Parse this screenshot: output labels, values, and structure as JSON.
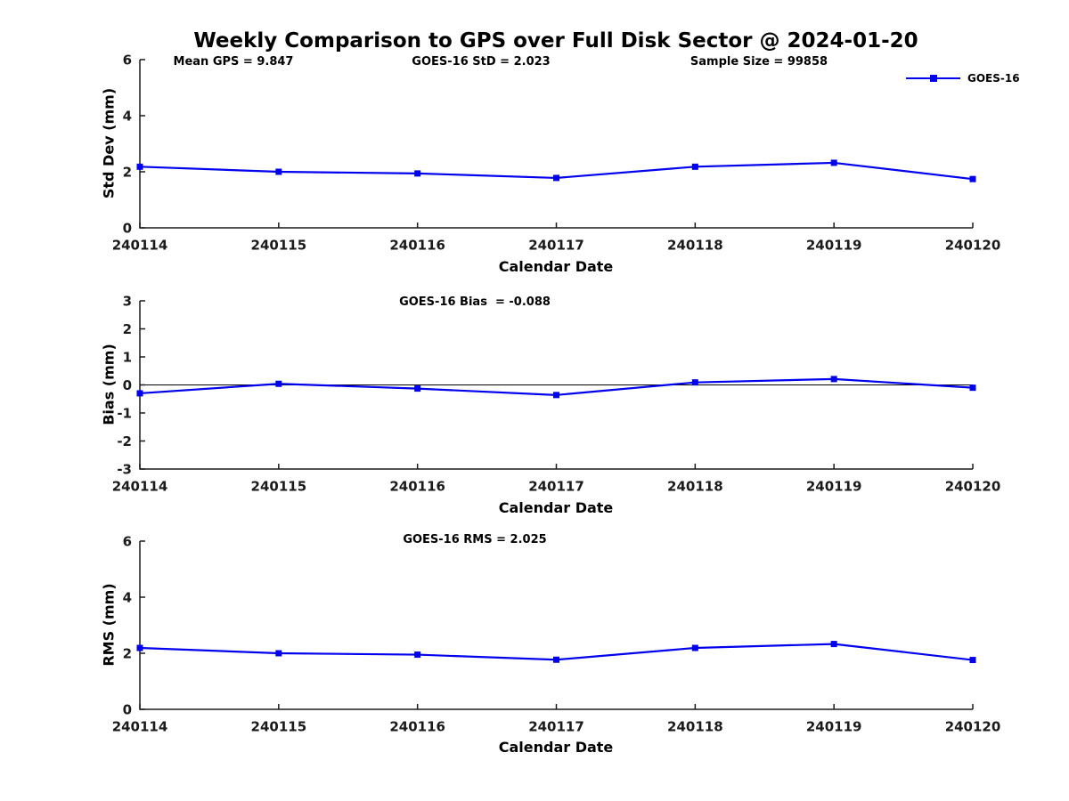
{
  "title": "Weekly Comparison to GPS over Full Disk Sector @ 2024-01-20",
  "legend": {
    "label": "GOES-16"
  },
  "colors": {
    "line": "#0000ee",
    "axis": "#1a1a1a",
    "zero_line": "#000000",
    "background": "#ffffff"
  },
  "chart_data": [
    {
      "type": "line",
      "categories": [
        "240114",
        "240115",
        "240116",
        "240117",
        "240118",
        "240119",
        "240120"
      ],
      "series": [
        {
          "name": "GOES-16",
          "values": [
            2.18,
            2.0,
            1.94,
            1.78,
            2.18,
            2.32,
            1.74
          ]
        }
      ],
      "annotations": [
        "Mean GPS = 9.847",
        "GOES-16 StD = 2.023",
        "Sample Size = 99858"
      ],
      "xlabel": "Calendar Date",
      "ylabel": "Std Dev (mm)",
      "ylim": [
        0,
        6
      ],
      "yticks": [
        0,
        2,
        4,
        6
      ],
      "grid": false,
      "zero_line": false,
      "legend_position": "top-right-outside",
      "marker": "square"
    },
    {
      "type": "line",
      "categories": [
        "240114",
        "240115",
        "240116",
        "240117",
        "240118",
        "240119",
        "240120"
      ],
      "series": [
        {
          "name": "GOES-16",
          "values": [
            -0.3,
            0.04,
            -0.13,
            -0.36,
            0.09,
            0.21,
            -0.1
          ]
        }
      ],
      "annotations": [
        "GOES-16 Bias  = -0.088"
      ],
      "xlabel": "Calendar Date",
      "ylabel": "Bias (mm)",
      "ylim": [
        -3,
        3
      ],
      "yticks": [
        -3,
        -2,
        -1,
        0,
        1,
        2,
        3
      ],
      "grid": false,
      "zero_line": true,
      "marker": "square"
    },
    {
      "type": "line",
      "categories": [
        "240114",
        "240115",
        "240116",
        "240117",
        "240118",
        "240119",
        "240120"
      ],
      "series": [
        {
          "name": "GOES-16",
          "values": [
            2.19,
            2.0,
            1.95,
            1.77,
            2.19,
            2.33,
            1.76
          ]
        }
      ],
      "annotations": [
        "GOES-16 RMS = 2.025"
      ],
      "xlabel": "Calendar Date",
      "ylabel": "RMS (mm)",
      "ylim": [
        0,
        6
      ],
      "yticks": [
        0,
        2,
        4,
        6
      ],
      "grid": false,
      "zero_line": false,
      "marker": "square"
    }
  ]
}
